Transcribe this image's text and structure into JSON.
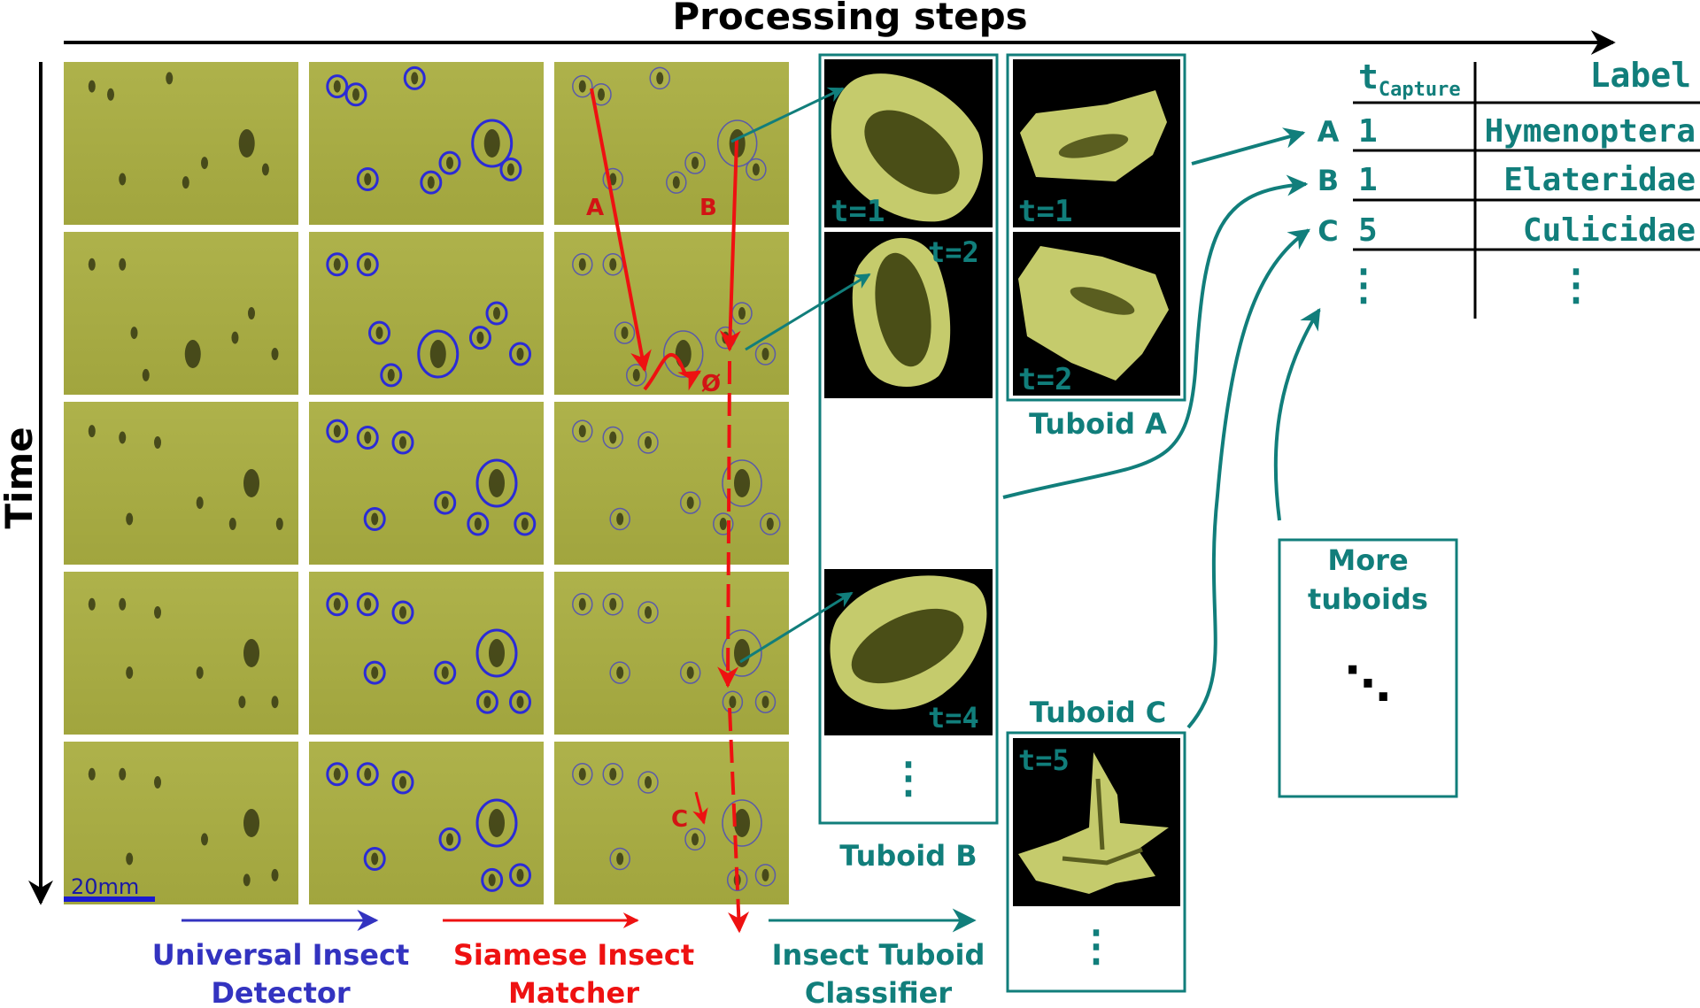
{
  "title": "Processing steps",
  "time_label": "Time",
  "scale_label": "20mm",
  "stage_labels": {
    "detector": [
      "Universal Insect",
      "Detector"
    ],
    "matcher": [
      "Siamese Insect",
      "Matcher"
    ],
    "classifier": [
      "Insect Tuboid",
      "Classifier"
    ]
  },
  "track_labels": {
    "a": "A",
    "b": "B",
    "c": "C",
    "lost": "Ø"
  },
  "tuboid_b": {
    "label": "Tuboid B",
    "frames": [
      "t=1",
      "t=2",
      "t=4"
    ],
    "ellipsis": "⋮"
  },
  "tuboid_a": {
    "label": "Tuboid A",
    "frames": [
      "t=1",
      "t=2"
    ]
  },
  "tuboid_c": {
    "label": "Tuboid C",
    "frames": [
      "t=5"
    ],
    "ellipsis": "⋮"
  },
  "more_tuboids": {
    "line1": "More",
    "line2": "tuboids",
    "ellipsis": "⋱"
  },
  "table": {
    "col_time_main": "t",
    "col_time_sub": "Capture",
    "col_label": "Label",
    "rows": [
      {
        "id": "A",
        "t": "1",
        "label": "Hymenoptera"
      },
      {
        "id": "B",
        "t": "1",
        "label": "Elateridae"
      },
      {
        "id": "C",
        "t": "5",
        "label": "Culicidae"
      }
    ],
    "ellipsis": "⋮"
  },
  "colors": {
    "teal": "#117e7b",
    "detector_blue": "#3333c0",
    "matcher_red": "#ee1111",
    "trap_background": "#a9ad45",
    "tuboid_halo": "#c7cc6f"
  }
}
